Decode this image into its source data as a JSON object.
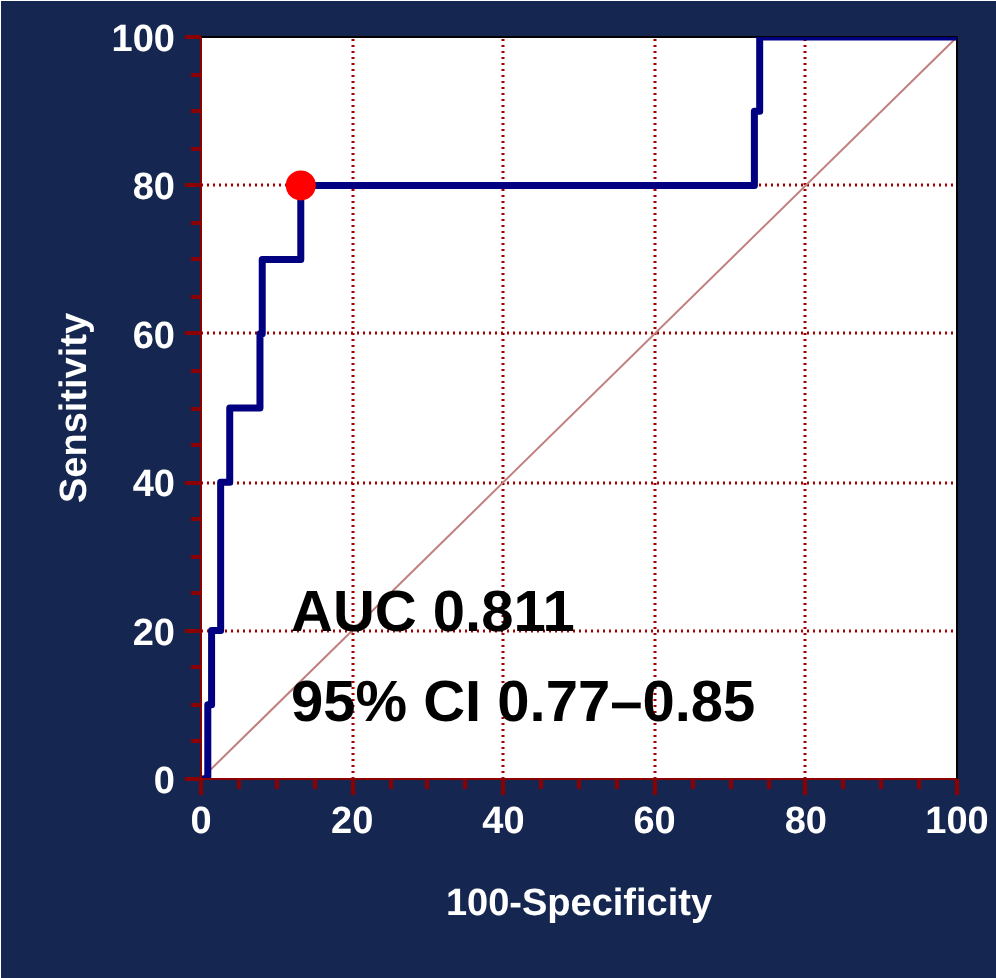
{
  "chart_data": {
    "type": "line",
    "xlabel": "100-Specificity",
    "ylabel": "Sensitivity",
    "xlim": [
      0,
      100
    ],
    "ylim": [
      0,
      100
    ],
    "xticks": [
      0,
      20,
      40,
      60,
      80,
      100
    ],
    "yticks": [
      0,
      20,
      40,
      60,
      80,
      100
    ],
    "grid": true,
    "marker": "none",
    "line_style": "solid",
    "annotations": [
      "AUC 0.811",
      "95% CI 0.77–0.85"
    ],
    "series": [
      {
        "color": "#c08080",
        "x": [
          0,
          100
        ],
        "values": [
          0,
          100
        ]
      },
      {
        "color": "#000080",
        "x": [
          0,
          0.9,
          0.9,
          1.4,
          1.4,
          2.6,
          2.6,
          3.8,
          3.8,
          7.8,
          7.8,
          8.1,
          8.1,
          13.2,
          13.2,
          73.2,
          73.2,
          73.9,
          73.9,
          100
        ],
        "values": [
          0,
          0,
          10,
          10,
          20,
          20,
          40,
          40,
          50,
          50,
          60,
          60,
          70,
          70,
          80,
          80,
          90,
          90,
          100,
          100
        ]
      },
      {
        "type": "scatter",
        "marker": "circle",
        "color": "#ff0000",
        "x": [
          13.2
        ],
        "values": [
          80
        ]
      }
    ]
  }
}
